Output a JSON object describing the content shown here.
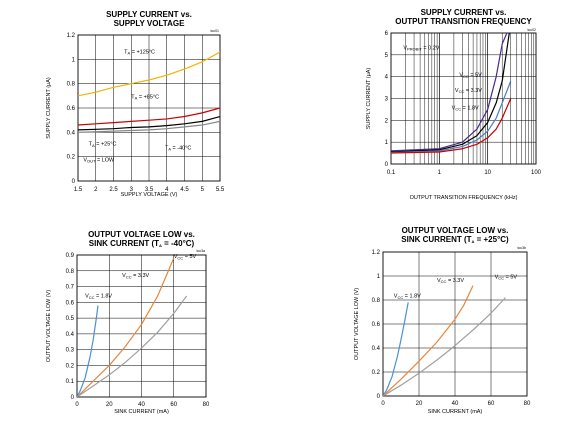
{
  "chart_data": [
    {
      "type": "line",
      "title": "SUPPLY CURRENT vs.",
      "subtitle": "SUPPLY VOLTAGE",
      "code": "toc01",
      "xlabel": "SUPPLY VOLTAGE (V)",
      "ylabel": "SUPPLY CURRENT (µA)",
      "xlim": [
        1.5,
        5.5
      ],
      "ylim": [
        0,
        1.2
      ],
      "xscale": "linear",
      "xticks": [
        "1.5",
        "2",
        "2.5",
        "3",
        "3.5",
        "4",
        "4.5",
        "5",
        "5.5"
      ],
      "yticks": [
        "0",
        "0.2",
        "0.4",
        "0.6",
        "0.8",
        "1",
        "1.2"
      ],
      "grid": true,
      "series": [
        {
          "x": [
            1.5,
            2,
            2.5,
            3,
            3.5,
            4,
            4.5,
            5,
            5.5
          ],
          "y": [
            0.7,
            0.73,
            0.77,
            0.8,
            0.83,
            0.87,
            0.92,
            0.98,
            1.06
          ],
          "color": "#f0b400"
        },
        {
          "x": [
            1.5,
            2,
            2.5,
            3,
            3.5,
            4,
            4.5,
            5,
            5.5
          ],
          "y": [
            0.46,
            0.47,
            0.48,
            0.49,
            0.5,
            0.51,
            0.53,
            0.56,
            0.6
          ],
          "color": "#cc0000"
        },
        {
          "x": [
            1.5,
            2,
            2.5,
            3,
            3.5,
            4,
            4.5,
            5,
            5.5
          ],
          "y": [
            0.42,
            0.425,
            0.43,
            0.44,
            0.445,
            0.455,
            0.47,
            0.49,
            0.53
          ],
          "color": "#000000"
        },
        {
          "x": [
            1.5,
            2,
            2.5,
            3,
            3.5,
            4,
            4.5,
            5,
            5.5
          ],
          "y": [
            0.4,
            0.405,
            0.41,
            0.415,
            0.42,
            0.43,
            0.445,
            0.46,
            0.49
          ],
          "color": "#888888"
        }
      ],
      "annotations": [
        {
          "parts": [
            {
              "t": "T"
            },
            {
              "t": "A",
              "sub": true
            },
            {
              "t": " = +125°C"
            }
          ],
          "x": 2.8,
          "y": 1.05
        },
        {
          "parts": [
            {
              "t": "T"
            },
            {
              "t": "A",
              "sub": true
            },
            {
              "t": " = +85°C"
            }
          ],
          "x": 3.0,
          "y": 0.68
        },
        {
          "parts": [
            {
              "t": "T"
            },
            {
              "t": "A",
              "sub": true
            },
            {
              "t": " = +25°C"
            }
          ],
          "x": 1.8,
          "y": 0.29
        },
        {
          "parts": [
            {
              "t": "T"
            },
            {
              "t": "A",
              "sub": true
            },
            {
              "t": " = -40°C"
            }
          ],
          "x": 3.95,
          "y": 0.26
        },
        {
          "parts": [
            {
              "t": "V"
            },
            {
              "t": "OUT",
              "sub": true
            },
            {
              "t": " = LOW"
            }
          ],
          "x": 1.65,
          "y": 0.16
        }
      ]
    },
    {
      "type": "line",
      "title": "SUPPLY CURRENT vs.",
      "subtitle": "OUTPUT TRANSITION FREQUENCY",
      "code": "toc02",
      "xlabel": "OUTPUT TRANSITION FREQUENCY (kHz)",
      "ylabel": "SUPPLY CURRENT (µA)",
      "xlim": [
        0.1,
        100
      ],
      "ylim": [
        0,
        6
      ],
      "xscale": "log",
      "xticks": [
        "0.1",
        "1",
        "10",
        "100"
      ],
      "yticks": [
        "0",
        "1",
        "2",
        "3",
        "4",
        "5",
        "6"
      ],
      "grid": true,
      "series": [
        {
          "x": [
            0.1,
            1,
            3,
            6,
            10,
            15,
            20,
            25
          ],
          "y": [
            0.6,
            0.7,
            1.0,
            1.6,
            2.5,
            4.0,
            5.5,
            6.0
          ],
          "color": "#4b2a8c"
        },
        {
          "x": [
            0.1,
            1,
            3,
            6,
            10,
            15,
            20,
            28
          ],
          "y": [
            0.55,
            0.65,
            0.9,
            1.3,
            1.9,
            2.8,
            3.8,
            6.0
          ],
          "color": "#000000"
        },
        {
          "x": [
            0.1,
            1,
            3,
            6,
            10,
            15,
            20,
            30
          ],
          "y": [
            0.52,
            0.6,
            0.8,
            1.1,
            1.5,
            2.1,
            2.8,
            3.8
          ],
          "color": "#4a7fc1"
        },
        {
          "x": [
            0.1,
            1,
            3,
            6,
            10,
            15,
            20,
            30
          ],
          "y": [
            0.5,
            0.55,
            0.7,
            0.9,
            1.2,
            1.6,
            2.1,
            3.0
          ],
          "color": "#cc0000"
        }
      ],
      "annotations": [
        {
          "parts": [
            {
              "t": "V"
            },
            {
              "t": "PROBIT",
              "sub": true
            },
            {
              "t": " = 0.2V"
            }
          ],
          "x": 0.18,
          "y": 5.25
        },
        {
          "parts": [
            {
              "t": "V"
            },
            {
              "t": "CC",
              "sub": true
            },
            {
              "t": " = 5V"
            }
          ],
          "x": 2.6,
          "y": 4.0
        },
        {
          "parts": [
            {
              "t": "V"
            },
            {
              "t": "CC",
              "sub": true
            },
            {
              "t": " = 3.3V"
            }
          ],
          "x": 2.1,
          "y": 3.3
        },
        {
          "parts": [
            {
              "t": "V"
            },
            {
              "t": "CC",
              "sub": true
            },
            {
              "t": " = 1.8V"
            }
          ],
          "x": 1.8,
          "y": 2.5
        }
      ]
    },
    {
      "type": "line",
      "title": "OUTPUT VOLTAGE LOW vs.",
      "subtitle_parts": [
        {
          "t": "SINK CURRENT (T"
        },
        {
          "t": "A",
          "sub": true
        },
        {
          "t": " = -40°C)"
        }
      ],
      "code": "toc3a",
      "xlabel": "SINK CURRENT (mA)",
      "ylabel": "OUTPUT VOLTAGE LOW (V)",
      "xlim": [
        0,
        80
      ],
      "ylim": [
        0,
        0.9
      ],
      "xscale": "linear",
      "xticks": [
        "0",
        "20",
        "40",
        "60",
        "80"
      ],
      "yticks": [
        "0",
        "0.1",
        "0.2",
        "0.3",
        "0.4",
        "0.5",
        "0.6",
        "0.7",
        "0.8",
        "0.9"
      ],
      "grid": true,
      "series": [
        {
          "x": [
            0,
            2,
            5,
            8,
            10,
            12,
            13
          ],
          "y": [
            0,
            0.04,
            0.12,
            0.25,
            0.36,
            0.5,
            0.58
          ],
          "color": "#4a90d9"
        },
        {
          "x": [
            0,
            10,
            20,
            30,
            40,
            50,
            55,
            60
          ],
          "y": [
            0,
            0.1,
            0.2,
            0.32,
            0.46,
            0.64,
            0.76,
            0.88
          ],
          "color": "#e8863a"
        },
        {
          "x": [
            0,
            10,
            20,
            30,
            40,
            50,
            60,
            68
          ],
          "y": [
            0,
            0.07,
            0.14,
            0.22,
            0.31,
            0.41,
            0.53,
            0.64
          ],
          "color": "#a0a0a0"
        }
      ],
      "annotations": [
        {
          "parts": [
            {
              "t": "V"
            },
            {
              "t": "CC",
              "sub": true
            },
            {
              "t": " = 5V"
            }
          ],
          "x": 60,
          "y": 0.88
        },
        {
          "parts": [
            {
              "t": "V"
            },
            {
              "t": "CC",
              "sub": true
            },
            {
              "t": " = 3.3V"
            }
          ],
          "x": 28,
          "y": 0.76
        },
        {
          "parts": [
            {
              "t": "V"
            },
            {
              "t": "CC",
              "sub": true
            },
            {
              "t": " = 1.8V"
            }
          ],
          "x": 5,
          "y": 0.63
        }
      ]
    },
    {
      "type": "line",
      "title": "OUTPUT VOLTAGE LOW vs.",
      "subtitle_parts": [
        {
          "t": "SINK CURRENT (T"
        },
        {
          "t": "A",
          "sub": true
        },
        {
          "t": " = +25°C)"
        }
      ],
      "code": "toc3b",
      "xlabel": "SINK CURRENT (mA)",
      "ylabel": "OUTPUT VOLTAGE LOW (V)",
      "xlim": [
        0,
        80
      ],
      "ylim": [
        0,
        1.2
      ],
      "xscale": "linear",
      "xticks": [
        "0",
        "20",
        "40",
        "60",
        "80"
      ],
      "yticks": [
        "0",
        "0.2",
        "0.4",
        "0.6",
        "0.8",
        "1",
        "1.2"
      ],
      "grid": true,
      "series": [
        {
          "x": [
            0,
            2,
            5,
            8,
            10,
            12,
            14
          ],
          "y": [
            0,
            0.05,
            0.16,
            0.33,
            0.47,
            0.62,
            0.78
          ],
          "color": "#4a90d9"
        },
        {
          "x": [
            0,
            10,
            20,
            30,
            40,
            45,
            50
          ],
          "y": [
            0,
            0.14,
            0.29,
            0.45,
            0.64,
            0.76,
            0.92
          ],
          "color": "#e8863a"
        },
        {
          "x": [
            0,
            10,
            20,
            30,
            40,
            50,
            60,
            68
          ],
          "y": [
            0,
            0.09,
            0.19,
            0.3,
            0.42,
            0.55,
            0.69,
            0.82
          ],
          "color": "#a0a0a0"
        }
      ],
      "annotations": [
        {
          "parts": [
            {
              "t": "V"
            },
            {
              "t": "CC",
              "sub": true
            },
            {
              "t": " = 5V"
            }
          ],
          "x": 62,
          "y": 0.98
        },
        {
          "parts": [
            {
              "t": "V"
            },
            {
              "t": "CC",
              "sub": true
            },
            {
              "t": " = 3.3V"
            }
          ],
          "x": 30,
          "y": 0.95
        },
        {
          "parts": [
            {
              "t": "V"
            },
            {
              "t": "CC",
              "sub": true
            },
            {
              "t": " = 1.8V"
            }
          ],
          "x": 6,
          "y": 0.82
        }
      ]
    }
  ]
}
